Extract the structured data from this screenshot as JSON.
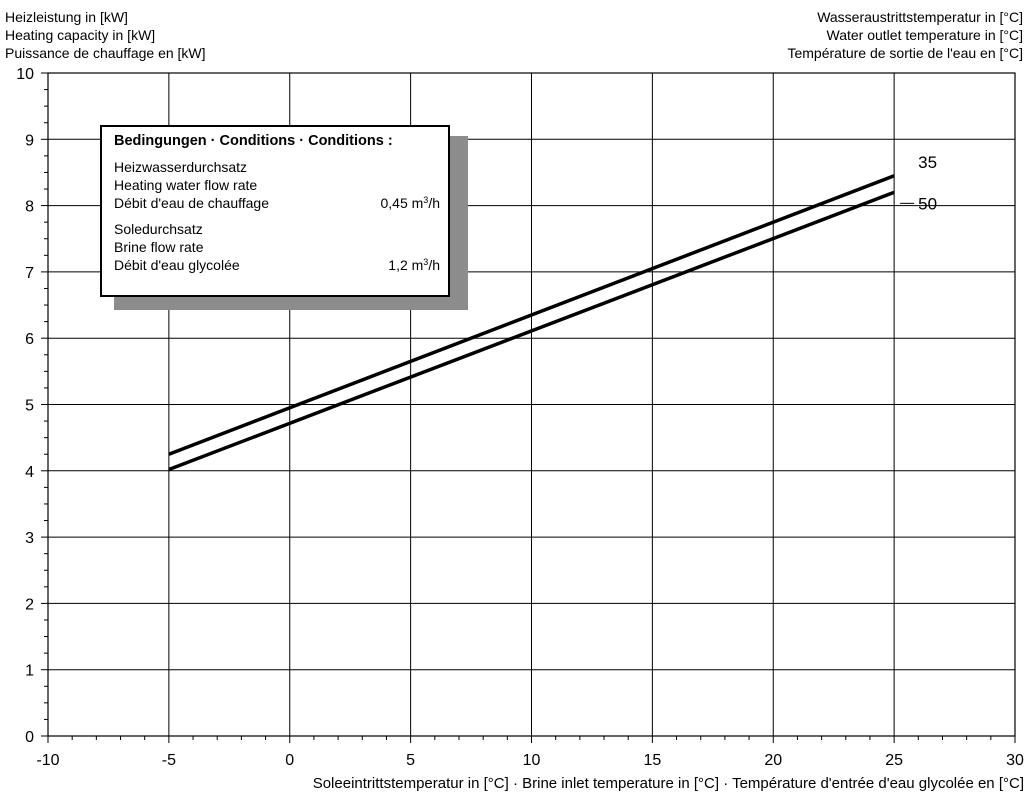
{
  "ylabel_left": [
    "Heizleistung in [kW]",
    "Heating capacity in [kW]",
    "Puissance de chauffage en [kW]"
  ],
  "ylabel_right": [
    "Wasseraustrittstemperatur in [°C]",
    "Water outlet temperature in [°C]",
    "Température de sortie de l'eau en [°C]"
  ],
  "xlabel": "Soleeintrittstemperatur in [°C] · Brine inlet temperature in [°C] · Température d'entrée d'eau glycolée en [°C]",
  "conditions": {
    "title": "Bedingungen · Conditions · Conditions :",
    "heating_lines": [
      "Heizwasserdurchsatz",
      "Heating water flow rate"
    ],
    "heating_last": "Débit d'eau de chauffage",
    "heating_value": "0,45 m",
    "heating_sup": "3",
    "heating_unit": "/h",
    "brine_lines": [
      "Soledurchsatz",
      "Brine flow rate"
    ],
    "brine_last": "Débit d'eau glycolée",
    "brine_value": "1,2 m",
    "brine_sup": "3",
    "brine_unit": "/h"
  },
  "chart_data": {
    "type": "line",
    "xlim": [
      -10,
      30
    ],
    "ylim": [
      0,
      10
    ],
    "xticks": [
      -10,
      -5,
      0,
      5,
      10,
      15,
      20,
      25,
      30
    ],
    "yticks": [
      0,
      1,
      2,
      3,
      4,
      5,
      6,
      7,
      8,
      9,
      10
    ],
    "grid": true,
    "series": [
      {
        "name": "35",
        "x": [
          -5,
          25
        ],
        "y": [
          4.25,
          8.45
        ]
      },
      {
        "name": "50",
        "x": [
          -5,
          25
        ],
        "y": [
          4.02,
          8.2
        ]
      }
    ]
  }
}
